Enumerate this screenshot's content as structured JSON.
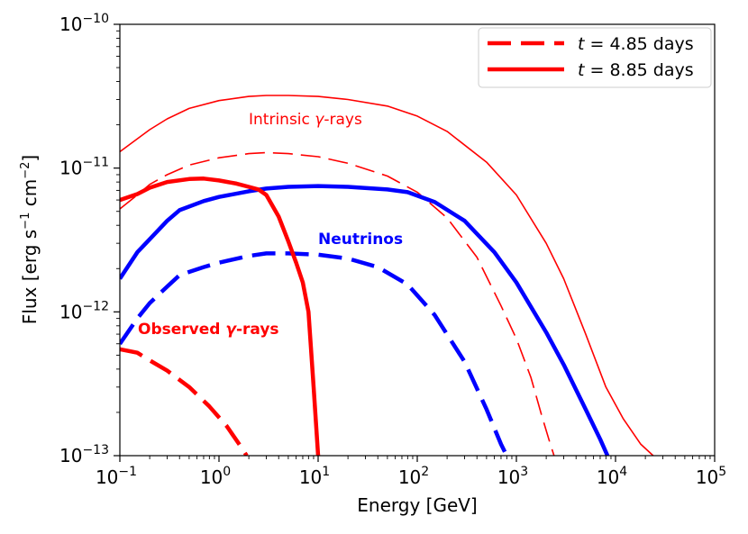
{
  "chart_data": {
    "type": "line",
    "xscale": "log",
    "yscale": "log",
    "xlim": [
      0.1,
      100000
    ],
    "ylim": [
      1e-13,
      1e-10
    ],
    "xlabel": "Energy [GeV]",
    "ylabel_parts": {
      "main": "Flux  [erg s",
      "exp1": "−1",
      "mid": " cm",
      "exp2": "−2",
      "end": "]"
    },
    "x_ticks": [
      {
        "base": "10",
        "exp": "−1"
      },
      {
        "base": "10",
        "exp": "0"
      },
      {
        "base": "10",
        "exp": "1"
      },
      {
        "base": "10",
        "exp": "2"
      },
      {
        "base": "10",
        "exp": "3"
      },
      {
        "base": "10",
        "exp": "4"
      },
      {
        "base": "10",
        "exp": "5"
      }
    ],
    "y_ticks": [
      {
        "base": "10",
        "exp": "−13"
      },
      {
        "base": "10",
        "exp": "−12"
      },
      {
        "base": "10",
        "exp": "−11"
      },
      {
        "base": "10",
        "exp": "−10"
      }
    ],
    "colors": {
      "red": "#ff0000",
      "blue": "#0000ff"
    },
    "legend": {
      "location": "top-right",
      "entries": [
        {
          "t": "t",
          "rest": " = 4.85 days",
          "style": "dashed"
        },
        {
          "t": "t",
          "rest": " = 8.85 days",
          "style": "solid"
        }
      ]
    },
    "annotations": [
      {
        "id": "intrinsic",
        "text": "Intrinsic ",
        "greek": "γ",
        "tail": "-rays",
        "color": "#ff0000",
        "bold": false
      },
      {
        "id": "neutrinos",
        "text": "Neutrinos",
        "greek": "",
        "tail": "",
        "color": "#0000ff",
        "bold": true
      },
      {
        "id": "observed",
        "text": "Observed ",
        "greek": "γ",
        "tail": "-rays",
        "color": "#ff0000",
        "bold": true
      }
    ],
    "series": [
      {
        "name": "Intrinsic gamma-rays t=8.85 days",
        "color": "#ff0000",
        "style": "solid",
        "width": "thin",
        "points": [
          [
            0.1,
            1.3e-11
          ],
          [
            0.15,
            1.6e-11
          ],
          [
            0.2,
            1.85e-11
          ],
          [
            0.3,
            2.2e-11
          ],
          [
            0.5,
            2.6e-11
          ],
          [
            1,
            2.95e-11
          ],
          [
            2,
            3.15e-11
          ],
          [
            3,
            3.2e-11
          ],
          [
            5,
            3.2e-11
          ],
          [
            10,
            3.15e-11
          ],
          [
            20,
            3e-11
          ],
          [
            50,
            2.7e-11
          ],
          [
            100,
            2.3e-11
          ],
          [
            200,
            1.8e-11
          ],
          [
            500,
            1.1e-11
          ],
          [
            1000,
            6.5e-12
          ],
          [
            2000,
            3e-12
          ],
          [
            3000,
            1.7e-12
          ],
          [
            5000,
            7e-13
          ],
          [
            8000,
            3e-13
          ],
          [
            12000,
            1.8e-13
          ],
          [
            18000,
            1.2e-13
          ],
          [
            24000,
            1e-13
          ]
        ]
      },
      {
        "name": "Intrinsic gamma-rays t=4.85 days",
        "color": "#ff0000",
        "style": "dashed",
        "width": "thin",
        "points": [
          [
            0.1,
            5.2e-12
          ],
          [
            0.15,
            6.5e-12
          ],
          [
            0.2,
            7.7e-12
          ],
          [
            0.3,
            9e-12
          ],
          [
            0.5,
            1.05e-11
          ],
          [
            1,
            1.18e-11
          ],
          [
            2,
            1.26e-11
          ],
          [
            3,
            1.28e-11
          ],
          [
            5,
            1.26e-11
          ],
          [
            10,
            1.2e-11
          ],
          [
            20,
            1.08e-11
          ],
          [
            50,
            8.8e-12
          ],
          [
            100,
            6.8e-12
          ],
          [
            200,
            4.5e-12
          ],
          [
            400,
            2.4e-12
          ],
          [
            700,
            1.1e-12
          ],
          [
            1000,
            6.5e-13
          ],
          [
            1400,
            3.5e-13
          ],
          [
            1800,
            1.9e-13
          ],
          [
            2200,
            1.2e-13
          ],
          [
            2400,
            1e-13
          ]
        ]
      },
      {
        "name": "Neutrinos t=8.85 days",
        "color": "#0000ff",
        "style": "solid",
        "width": "thick",
        "points": [
          [
            0.1,
            1.7e-12
          ],
          [
            0.15,
            2.6e-12
          ],
          [
            0.2,
            3.2e-12
          ],
          [
            0.3,
            4.3e-12
          ],
          [
            0.4,
            5.1e-12
          ],
          [
            0.7,
            5.9e-12
          ],
          [
            1,
            6.3e-12
          ],
          [
            2,
            6.9e-12
          ],
          [
            3,
            7.2e-12
          ],
          [
            5,
            7.4e-12
          ],
          [
            10,
            7.5e-12
          ],
          [
            20,
            7.4e-12
          ],
          [
            50,
            7.1e-12
          ],
          [
            80,
            6.8e-12
          ],
          [
            150,
            5.8e-12
          ],
          [
            300,
            4.3e-12
          ],
          [
            600,
            2.6e-12
          ],
          [
            1000,
            1.6e-12
          ],
          [
            2000,
            7.2e-13
          ],
          [
            3000,
            4.3e-13
          ],
          [
            5000,
            2.1e-13
          ],
          [
            7000,
            1.3e-13
          ],
          [
            8300,
            1e-13
          ]
        ]
      },
      {
        "name": "Neutrinos t=4.85 days",
        "color": "#0000ff",
        "style": "dashed",
        "width": "thick",
        "points": [
          [
            0.1,
            6e-13
          ],
          [
            0.15,
            9e-13
          ],
          [
            0.2,
            1.15e-12
          ],
          [
            0.3,
            1.5e-12
          ],
          [
            0.4,
            1.8e-12
          ],
          [
            0.7,
            2.05e-12
          ],
          [
            1,
            2.2e-12
          ],
          [
            2,
            2.45e-12
          ],
          [
            3,
            2.55e-12
          ],
          [
            5,
            2.55e-12
          ],
          [
            10,
            2.5e-12
          ],
          [
            20,
            2.35e-12
          ],
          [
            40,
            2.05e-12
          ],
          [
            80,
            1.55e-12
          ],
          [
            150,
            9.5e-13
          ],
          [
            300,
            4.5e-13
          ],
          [
            500,
            2.1e-13
          ],
          [
            700,
            1.2e-13
          ],
          [
            800,
            1e-13
          ]
        ]
      },
      {
        "name": "Observed gamma-rays t=8.85 days",
        "color": "#ff0000",
        "style": "solid",
        "width": "thick",
        "points": [
          [
            0.1,
            6e-12
          ],
          [
            0.15,
            6.6e-12
          ],
          [
            0.2,
            7.3e-12
          ],
          [
            0.3,
            8e-12
          ],
          [
            0.5,
            8.4e-12
          ],
          [
            0.7,
            8.45e-12
          ],
          [
            1,
            8.2e-12
          ],
          [
            1.5,
            7.8e-12
          ],
          [
            2,
            7.4e-12
          ],
          [
            2.5,
            7.1e-12
          ],
          [
            3,
            6.5e-12
          ],
          [
            4,
            4.6e-12
          ],
          [
            5,
            3.1e-12
          ],
          [
            6,
            2.2e-12
          ],
          [
            7,
            1.6e-12
          ],
          [
            8,
            1e-12
          ],
          [
            9,
            3e-13
          ],
          [
            10,
            1e-13
          ]
        ]
      },
      {
        "name": "Observed gamma-rays t=4.85 days",
        "color": "#ff0000",
        "style": "dashed",
        "width": "thick",
        "points": [
          [
            0.1,
            5.5e-13
          ],
          [
            0.15,
            5.2e-13
          ],
          [
            0.2,
            4.6e-13
          ],
          [
            0.3,
            3.9e-13
          ],
          [
            0.5,
            3e-13
          ],
          [
            0.8,
            2.2e-13
          ],
          [
            1.2,
            1.6e-13
          ],
          [
            1.6,
            1.2e-13
          ],
          [
            1.9,
            1e-13
          ]
        ]
      }
    ]
  }
}
